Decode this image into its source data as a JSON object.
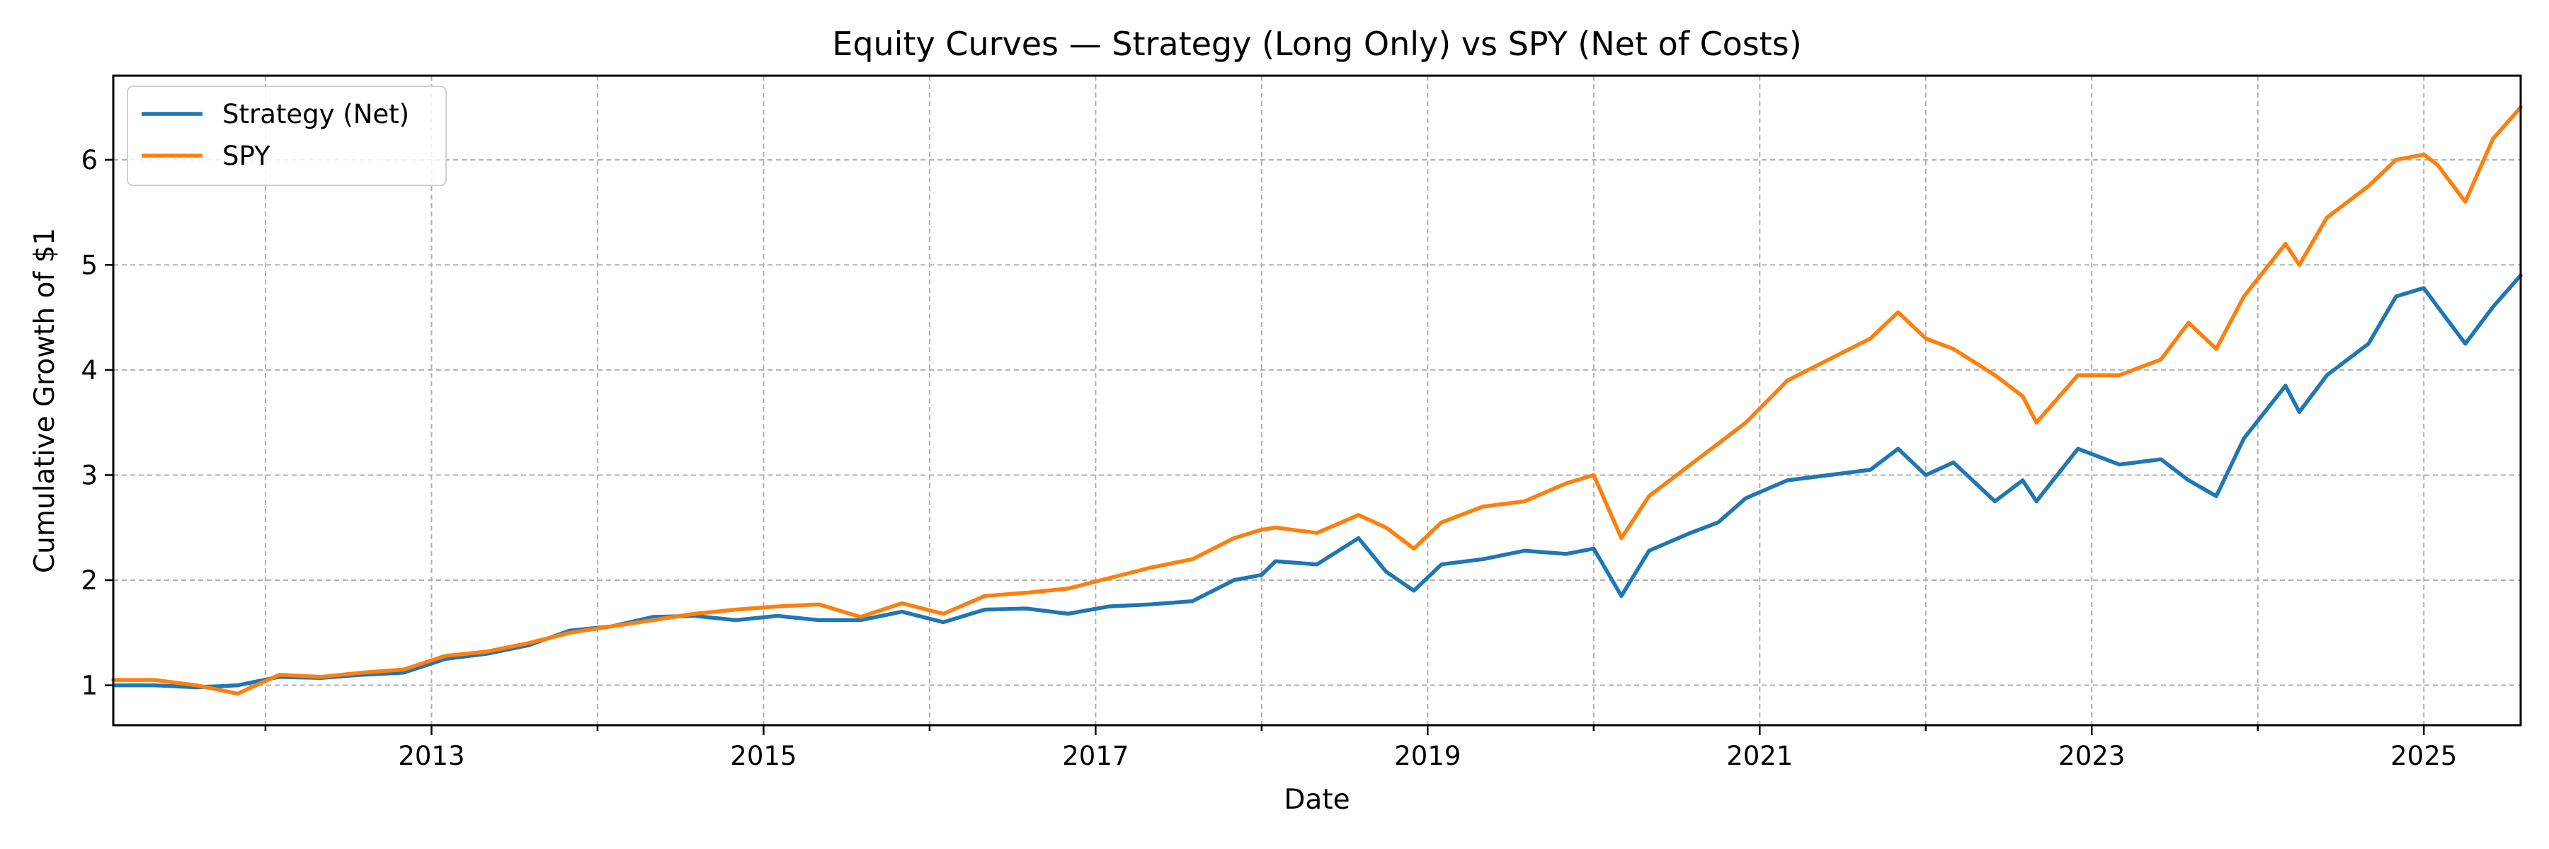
{
  "chart_data": {
    "type": "line",
    "title": "Equity Curves — Strategy (Long Only) vs SPY (Net of Costs)",
    "xlabel": "Date",
    "ylabel": "Cumulative Growth of $1",
    "xlim": [
      "2011-02",
      "2025-08"
    ],
    "ylim": [
      0.62,
      6.8
    ],
    "grid": true,
    "legend_position": "top-left",
    "x_ticks": [
      "2013",
      "2015",
      "2017",
      "2019",
      "2021",
      "2023",
      "2025"
    ],
    "y_ticks": [
      "1",
      "2",
      "3",
      "4",
      "5",
      "6"
    ],
    "x": [
      "2011-02",
      "2011-05",
      "2011-08",
      "2011-11",
      "2012-02",
      "2012-05",
      "2012-08",
      "2012-11",
      "2013-02",
      "2013-05",
      "2013-08",
      "2013-11",
      "2014-02",
      "2014-05",
      "2014-08",
      "2014-11",
      "2015-02",
      "2015-05",
      "2015-08",
      "2015-11",
      "2016-02",
      "2016-05",
      "2016-08",
      "2016-11",
      "2017-02",
      "2017-05",
      "2017-08",
      "2017-11",
      "2018-01",
      "2018-02",
      "2018-05",
      "2018-08",
      "2018-10",
      "2018-12",
      "2019-02",
      "2019-05",
      "2019-08",
      "2019-11",
      "2020-01",
      "2020-03",
      "2020-05",
      "2020-08",
      "2020-10",
      "2020-12",
      "2021-03",
      "2021-06",
      "2021-09",
      "2021-11",
      "2022-01",
      "2022-03",
      "2022-06",
      "2022-08",
      "2022-09",
      "2022-12",
      "2023-03",
      "2023-06",
      "2023-08",
      "2023-10",
      "2023-12",
      "2024-03",
      "2024-04",
      "2024-06",
      "2024-09",
      "2024-11",
      "2025-01",
      "2025-02",
      "2025-04",
      "2025-06",
      "2025-08"
    ],
    "series": [
      {
        "name": "Strategy (Net)",
        "color": "#1f77b4",
        "values": [
          1.0,
          1.0,
          0.98,
          1.0,
          1.08,
          1.07,
          1.1,
          1.12,
          1.25,
          1.3,
          1.38,
          1.52,
          1.56,
          1.65,
          1.66,
          1.62,
          1.66,
          1.62,
          1.62,
          1.7,
          1.6,
          1.72,
          1.73,
          1.68,
          1.75,
          1.77,
          1.8,
          2.0,
          2.05,
          2.18,
          2.15,
          2.4,
          2.08,
          1.9,
          2.15,
          2.2,
          2.28,
          2.25,
          2.3,
          1.85,
          2.28,
          2.45,
          2.55,
          2.78,
          2.95,
          3.0,
          3.05,
          3.25,
          3.0,
          3.12,
          2.75,
          2.95,
          2.75,
          3.25,
          3.1,
          3.15,
          2.95,
          2.8,
          3.35,
          3.85,
          3.6,
          3.95,
          4.25,
          4.7,
          4.78,
          4.6,
          4.25,
          4.6,
          4.9
        ]
      },
      {
        "name": "SPY",
        "color": "#ff7f0e",
        "values": [
          1.05,
          1.05,
          1.0,
          0.92,
          1.1,
          1.08,
          1.12,
          1.15,
          1.28,
          1.32,
          1.4,
          1.5,
          1.56,
          1.62,
          1.68,
          1.72,
          1.75,
          1.77,
          1.65,
          1.78,
          1.68,
          1.85,
          1.88,
          1.92,
          2.02,
          2.12,
          2.2,
          2.4,
          2.48,
          2.5,
          2.45,
          2.62,
          2.5,
          2.3,
          2.55,
          2.7,
          2.75,
          2.92,
          3.0,
          2.4,
          2.8,
          3.1,
          3.3,
          3.5,
          3.9,
          4.1,
          4.3,
          4.55,
          4.3,
          4.2,
          3.95,
          3.75,
          3.5,
          3.95,
          3.95,
          4.1,
          4.45,
          4.2,
          4.7,
          5.2,
          5.0,
          5.45,
          5.75,
          6.0,
          6.05,
          5.95,
          5.6,
          6.2,
          6.5
        ]
      }
    ]
  }
}
